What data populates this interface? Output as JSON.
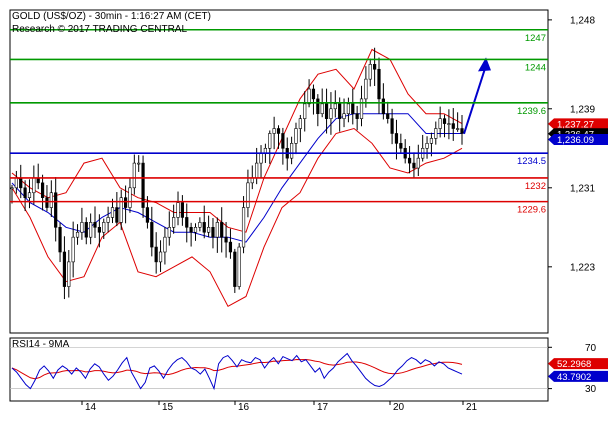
{
  "header": {
    "title": "GOLD (US$/OZ) - 30min - 1:16:27 AM (CET)",
    "subtitle": "Research © 2017 TRADING CENTRAL"
  },
  "rsi_title": "RSI14 - 9MA",
  "colors": {
    "price": "#000000",
    "bollinger": "#dd0000",
    "ma": "#0000cc",
    "resistance": "#009900",
    "pivot": "#0000cc",
    "support": "#dd0000",
    "arrow": "#0000cc",
    "rsi": "#0000cc",
    "rsi_ma": "#dd0000"
  },
  "chart_data": [
    {
      "type": "line",
      "panel": "price",
      "instrument": "GOLD (US$/OZ)",
      "timeframe": "30min",
      "x_ticks": [
        "14",
        "15",
        "16",
        "17",
        "20",
        "21"
      ],
      "y_ticks": [
        1223,
        1231,
        1239,
        1248
      ],
      "y_tick_labels": [
        "1,223",
        "1,231",
        "1,239",
        "1,248"
      ],
      "ylim": [
        1216.3,
        1249.0
      ],
      "levels": [
        {
          "label": "1247",
          "value": 1247,
          "kind": "resistance"
        },
        {
          "label": "1244",
          "value": 1244,
          "kind": "resistance"
        },
        {
          "label": "1239.6",
          "value": 1239.6,
          "kind": "resistance"
        },
        {
          "label": "1234.5",
          "value": 1234.5,
          "kind": "pivot"
        },
        {
          "label": "1232",
          "value": 1232,
          "kind": "support"
        },
        {
          "label": "1229.6",
          "value": 1229.6,
          "kind": "support"
        }
      ],
      "last_value_tags": [
        {
          "label": "1,237.27",
          "value": 1237.27,
          "color": "#dd0000"
        },
        {
          "label": "1,236.47",
          "value": 1236.47,
          "color": "#000000"
        },
        {
          "label": "1,236.09",
          "value": 1236.09,
          "color": "#0000cc"
        }
      ],
      "closes": [
        1231,
        1232,
        1231,
        1230,
        1230.5,
        1232,
        1231.5,
        1230,
        1229,
        1230.5,
        1227,
        1224.5,
        1221,
        1223.5,
        1226,
        1226.5,
        1227.5,
        1226,
        1227.5,
        1227,
        1226.5,
        1227.5,
        1228,
        1229,
        1227.5,
        1230,
        1229,
        1231,
        1233.5,
        1233.5,
        1229,
        1227.5,
        1225,
        1223.5,
        1224.5,
        1226,
        1227,
        1228,
        1229.5,
        1228,
        1227,
        1226.5,
        1227,
        1227.5,
        1226.5,
        1227,
        1226,
        1227.5,
        1226,
        1225.5,
        1224.5,
        1221,
        1225,
        1229,
        1231.5,
        1232,
        1233.5,
        1234.5,
        1235,
        1236.5,
        1237,
        1236.5,
        1235,
        1234,
        1235.5,
        1237,
        1238,
        1239.5,
        1241,
        1240,
        1238.5,
        1239.5,
        1238,
        1239,
        1239.5,
        1238,
        1238.5,
        1239.5,
        1238.5,
        1238,
        1240,
        1242,
        1243.5,
        1243,
        1240,
        1238.5,
        1238,
        1236.5,
        1235.5,
        1235,
        1234,
        1233.5,
        1233,
        1234,
        1235,
        1235.5,
        1236,
        1237,
        1238,
        1237.5,
        1237.5,
        1237,
        1237,
        1236.5
      ],
      "forecast_arrow": {
        "from": 1236.47,
        "to": 1244.2
      },
      "ma": [
        1231.5,
        1229.5,
        1228.5,
        1227,
        1226.5,
        1228,
        1229,
        1228.5,
        1227.5,
        1226.5,
        1226.5,
        1226,
        1226,
        1225.5,
        1228,
        1231,
        1233.5,
        1236,
        1238,
        1238.5,
        1238.5,
        1238.5,
        1238.5,
        1236.5,
        1236.5,
        1236.5
      ],
      "bb_upper": [
        1232.5,
        1231,
        1230,
        1230.5,
        1233.5,
        1234,
        1231,
        1230,
        1229.5,
        1228.5,
        1228.5,
        1228.5,
        1227,
        1226.5,
        1232,
        1236,
        1240,
        1242.5,
        1243,
        1241,
        1245,
        1244,
        1240.5,
        1238.5,
        1238.5,
        1237.5
      ],
      "bb_lower": [
        1231,
        1228,
        1224,
        1221.5,
        1222,
        1226,
        1227.5,
        1222.5,
        1222,
        1223,
        1224,
        1222.5,
        1219,
        1220,
        1225,
        1229,
        1230.5,
        1234,
        1236.5,
        1237,
        1235.5,
        1233,
        1232.5,
        1233.5,
        1234,
        1235
      ]
    },
    {
      "type": "line",
      "panel": "rsi",
      "indicator": "RSI14 - 9MA",
      "y_ticks": [
        30,
        70
      ],
      "ylim": [
        18,
        79
      ],
      "last_value_tags": [
        {
          "label": "52.2968",
          "value": 52.2968,
          "color": "#dd0000"
        },
        {
          "label": "43.7902",
          "value": 43.7902,
          "color": "#0000cc"
        }
      ],
      "rsi": [
        50,
        46,
        40,
        34,
        30,
        38,
        48,
        52,
        47,
        40,
        48,
        52,
        49,
        44,
        50,
        46,
        40,
        49,
        54,
        51,
        44,
        38,
        42,
        48,
        55,
        60,
        46,
        38,
        30,
        36,
        50,
        52,
        47,
        40,
        48,
        54,
        58,
        60,
        56,
        50,
        48,
        44,
        49,
        40,
        30,
        54,
        60,
        62,
        57,
        51,
        58,
        56,
        55,
        60,
        58,
        50,
        56,
        60,
        54,
        61,
        59,
        57,
        62,
        56,
        58,
        52,
        46,
        50,
        40,
        46,
        50,
        56,
        60,
        64,
        57,
        52,
        46,
        40,
        36,
        33,
        32,
        34,
        38,
        42,
        48,
        52,
        57,
        60,
        58,
        54,
        58,
        56,
        52,
        56,
        54,
        50,
        48,
        46,
        44
      ],
      "rsi_ma": [
        50,
        48.2,
        45.5,
        43,
        40.5,
        39.5,
        40.8,
        43.3,
        45,
        45.2,
        45.5,
        46.8,
        47.5,
        47.2,
        47.5,
        47.3,
        46.2,
        46.5,
        47.4,
        47.4,
        46.8,
        45.9,
        45.2,
        45.6,
        46.6,
        47.9,
        47.6,
        46.9,
        45.2,
        44.5,
        44.9,
        45.3,
        45.1,
        44,
        43.6,
        44.5,
        46.1,
        47.9,
        49.3,
        50,
        50.4,
        50.1,
        50.1,
        49.3,
        47.4,
        47.8,
        49,
        50.6,
        51.5,
        51.7,
        52.4,
        53,
        53.6,
        54.6,
        55.4,
        55.3,
        55.7,
        56.6,
        56.4,
        57.1,
        57.3,
        57.5,
        58.2,
        58.1,
        58.2,
        57.6,
        56.6,
        56,
        54.3,
        53.2,
        52.8,
        53.3,
        54.1,
        55.5,
        55.8,
        55.8,
        55.1,
        53.8,
        52.1,
        50.1,
        48,
        46.1,
        44.9,
        44.4,
        44.6,
        45.4,
        46.8,
        48.4,
        49.9,
        50.9,
        52.3,
        53.5,
        54.2,
        55.2,
        55.6,
        55.6,
        55.3,
        54.5,
        53.4
      ]
    }
  ]
}
